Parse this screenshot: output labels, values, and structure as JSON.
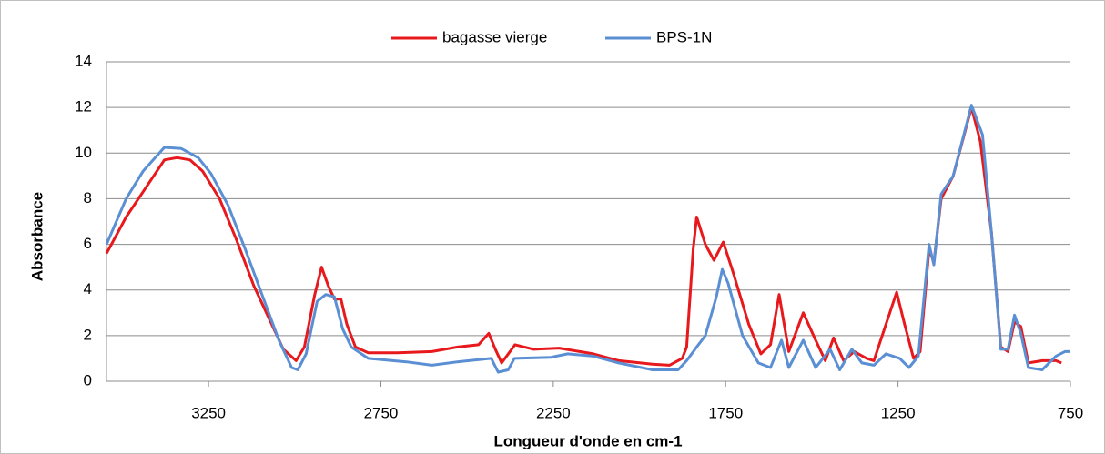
{
  "chart_data": {
    "type": "line",
    "xlabel": "Longueur d'onde en cm-1",
    "ylabel": "Absorbance",
    "xlim": [
      3546,
      750
    ],
    "ylim": [
      0,
      14
    ],
    "xticks": [
      3250,
      2750,
      2250,
      1750,
      1250,
      750
    ],
    "yticks": [
      0,
      2,
      4,
      6,
      8,
      10,
      12,
      14
    ],
    "grid": true,
    "legend": "top",
    "series": [
      {
        "name": "bagasse vierge",
        "color": "#e8191c",
        "x": [
          3546,
          3489,
          3440,
          3378,
          3341,
          3304,
          3267,
          3218,
          3169,
          3119,
          3070,
          3033,
          2996,
          2972,
          2942,
          2922,
          2903,
          2885,
          2866,
          2849,
          2824,
          2787,
          2701,
          2602,
          2528,
          2467,
          2437,
          2418,
          2400,
          2361,
          2307,
          2233,
          2134,
          2060,
          1962,
          1913,
          1876,
          1863,
          1844,
          1834,
          1809,
          1784,
          1757,
          1729,
          1683,
          1648,
          1620,
          1595,
          1567,
          1525,
          1489,
          1461,
          1437,
          1408,
          1377,
          1341,
          1320,
          1285,
          1254,
          1231,
          1205,
          1186,
          1160,
          1146,
          1125,
          1090,
          1037,
          1011,
          979,
          952,
          931,
          912,
          894,
          872,
          832,
          792,
          776
        ],
        "values": [
          5.6,
          7.2,
          8.3,
          9.7,
          9.8,
          9.7,
          9.2,
          8.0,
          6.2,
          4.2,
          2.6,
          1.4,
          0.9,
          1.5,
          3.8,
          5.0,
          4.2,
          3.6,
          3.6,
          2.5,
          1.5,
          1.25,
          1.25,
          1.3,
          1.5,
          1.6,
          2.1,
          1.4,
          0.8,
          1.6,
          1.4,
          1.45,
          1.2,
          0.9,
          0.75,
          0.7,
          1.0,
          1.5,
          5.8,
          7.2,
          6.0,
          5.3,
          6.1,
          4.8,
          2.5,
          1.2,
          1.6,
          3.8,
          1.3,
          3.0,
          1.8,
          0.9,
          1.9,
          0.9,
          1.3,
          1.0,
          0.9,
          2.5,
          3.9,
          2.5,
          1.0,
          1.3,
          5.8,
          5.2,
          8.0,
          9.0,
          12.0,
          10.5,
          6.5,
          1.5,
          1.3,
          2.6,
          2.4,
          0.8,
          0.9,
          0.9,
          0.8
        ]
      },
      {
        "name": "BPS-1N",
        "color": "#5b8fd4",
        "x": [
          3546,
          3489,
          3440,
          3378,
          3329,
          3280,
          3243,
          3193,
          3144,
          3095,
          3046,
          3009,
          2991,
          2967,
          2935,
          2910,
          2885,
          2861,
          2836,
          2787,
          2676,
          2602,
          2528,
          2430,
          2410,
          2381,
          2363,
          2257,
          2208,
          2134,
          2060,
          1962,
          1888,
          1863,
          1834,
          1809,
          1777,
          1760,
          1743,
          1701,
          1655,
          1620,
          1588,
          1567,
          1525,
          1489,
          1447,
          1419,
          1384,
          1355,
          1320,
          1285,
          1245,
          1218,
          1191,
          1160,
          1146,
          1125,
          1090,
          1037,
          1005,
          979,
          952,
          931,
          912,
          894,
          872,
          832,
          792,
          766,
          750
        ],
        "values": [
          6.0,
          8.0,
          9.2,
          10.25,
          10.2,
          9.8,
          9.1,
          7.7,
          5.8,
          3.8,
          1.8,
          0.6,
          0.5,
          1.2,
          3.5,
          3.8,
          3.7,
          2.3,
          1.5,
          1.0,
          0.85,
          0.7,
          0.85,
          1.0,
          0.4,
          0.5,
          1.0,
          1.05,
          1.2,
          1.1,
          0.8,
          0.5,
          0.5,
          0.9,
          1.5,
          2.0,
          3.7,
          4.9,
          4.3,
          2.0,
          0.8,
          0.6,
          1.8,
          0.6,
          1.8,
          0.6,
          1.4,
          0.5,
          1.4,
          0.8,
          0.7,
          1.2,
          1.0,
          0.6,
          1.1,
          6.0,
          5.1,
          8.2,
          9.0,
          12.1,
          10.8,
          6.5,
          1.4,
          1.4,
          2.9,
          2.1,
          0.6,
          0.5,
          1.1,
          1.3,
          1.3
        ]
      }
    ]
  }
}
